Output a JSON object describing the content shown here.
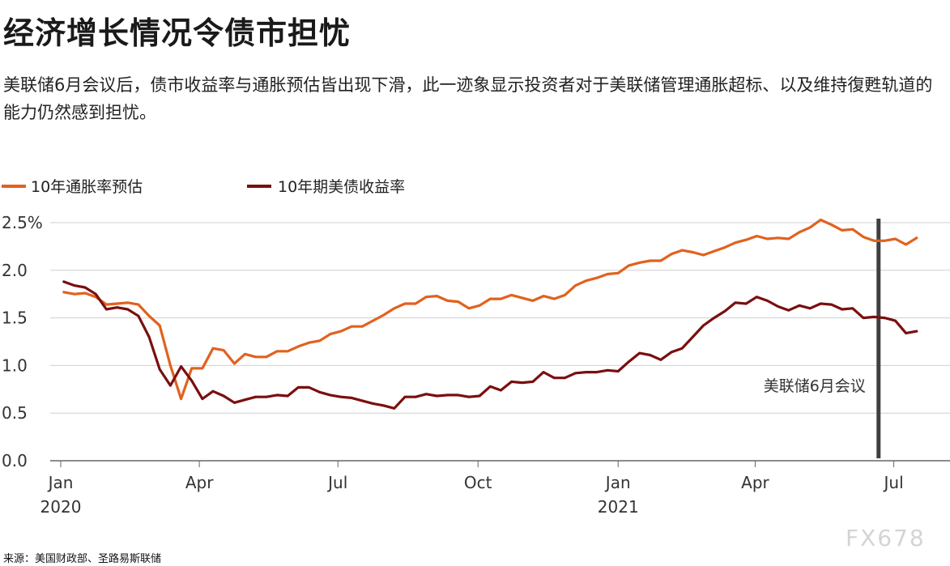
{
  "title": "经济增长情况令债市担忧",
  "subtitle": "美联储6月会议后，债市收益率与通胀预估皆出现下滑，此一迹象显示投资者对于美联储管理通胀超标、以及维持復甦轨道的能力仍然感到担忧。",
  "source": "来源：美国财政部、圣路易斯联储",
  "watermark": "FX678",
  "colors": {
    "inflation": "#e0621e",
    "yield": "#7a0f0f",
    "marker": "#404040",
    "grid": "#d0d0d0"
  },
  "chart_data": {
    "type": "line",
    "title": "",
    "xlabel": "",
    "ylabel": "",
    "ylim": [
      0,
      2.5
    ],
    "yticks": [
      0,
      0.5,
      1.0,
      1.5,
      2.0,
      2.5
    ],
    "ytick_labels": [
      "0.0",
      "0.5",
      "1.0",
      "1.5",
      "2.0",
      "2.5%"
    ],
    "xlim": [
      "2020-01-01",
      "2021-07-31"
    ],
    "xticks": [
      {
        "date": "2020-01-01",
        "label": "Jan",
        "year": "2020"
      },
      {
        "date": "2020-04-01",
        "label": "Apr",
        "year": ""
      },
      {
        "date": "2020-07-01",
        "label": "Jul",
        "year": ""
      },
      {
        "date": "2020-10-01",
        "label": "Oct",
        "year": ""
      },
      {
        "date": "2021-01-01",
        "label": "Jan",
        "year": "2021"
      },
      {
        "date": "2021-04-01",
        "label": "Apr",
        "year": ""
      },
      {
        "date": "2021-07-01",
        "label": "Jul",
        "year": ""
      }
    ],
    "grid": "horizontal",
    "legend_position": "top-left",
    "series": [
      {
        "name": "10年通胀率预估",
        "color": "#e0621e",
        "points": [
          [
            "2020-01-03",
            1.77
          ],
          [
            "2020-01-10",
            1.75
          ],
          [
            "2020-01-17",
            1.76
          ],
          [
            "2020-01-24",
            1.72
          ],
          [
            "2020-01-31",
            1.64
          ],
          [
            "2020-02-07",
            1.65
          ],
          [
            "2020-02-14",
            1.66
          ],
          [
            "2020-02-21",
            1.64
          ],
          [
            "2020-02-28",
            1.52
          ],
          [
            "2020-03-06",
            1.42
          ],
          [
            "2020-03-13",
            1.0
          ],
          [
            "2020-03-20",
            0.65
          ],
          [
            "2020-03-27",
            0.97
          ],
          [
            "2020-04-03",
            0.97
          ],
          [
            "2020-04-10",
            1.18
          ],
          [
            "2020-04-17",
            1.16
          ],
          [
            "2020-04-24",
            1.02
          ],
          [
            "2020-05-01",
            1.12
          ],
          [
            "2020-05-08",
            1.09
          ],
          [
            "2020-05-15",
            1.09
          ],
          [
            "2020-05-22",
            1.15
          ],
          [
            "2020-05-29",
            1.15
          ],
          [
            "2020-06-05",
            1.2
          ],
          [
            "2020-06-12",
            1.24
          ],
          [
            "2020-06-19",
            1.26
          ],
          [
            "2020-06-26",
            1.33
          ],
          [
            "2020-07-03",
            1.36
          ],
          [
            "2020-07-10",
            1.41
          ],
          [
            "2020-07-17",
            1.41
          ],
          [
            "2020-07-24",
            1.47
          ],
          [
            "2020-07-31",
            1.53
          ],
          [
            "2020-08-07",
            1.6
          ],
          [
            "2020-08-14",
            1.65
          ],
          [
            "2020-08-21",
            1.65
          ],
          [
            "2020-08-28",
            1.72
          ],
          [
            "2020-09-04",
            1.73
          ],
          [
            "2020-09-11",
            1.68
          ],
          [
            "2020-09-18",
            1.67
          ],
          [
            "2020-09-25",
            1.6
          ],
          [
            "2020-10-02",
            1.63
          ],
          [
            "2020-10-09",
            1.7
          ],
          [
            "2020-10-16",
            1.7
          ],
          [
            "2020-10-23",
            1.74
          ],
          [
            "2020-10-30",
            1.71
          ],
          [
            "2020-11-06",
            1.68
          ],
          [
            "2020-11-13",
            1.73
          ],
          [
            "2020-11-20",
            1.7
          ],
          [
            "2020-11-27",
            1.74
          ],
          [
            "2020-12-04",
            1.84
          ],
          [
            "2020-12-11",
            1.89
          ],
          [
            "2020-12-18",
            1.92
          ],
          [
            "2020-12-25",
            1.96
          ],
          [
            "2021-01-01",
            1.97
          ],
          [
            "2021-01-08",
            2.05
          ],
          [
            "2021-01-15",
            2.08
          ],
          [
            "2021-01-22",
            2.1
          ],
          [
            "2021-01-29",
            2.1
          ],
          [
            "2021-02-05",
            2.17
          ],
          [
            "2021-02-12",
            2.21
          ],
          [
            "2021-02-19",
            2.19
          ],
          [
            "2021-02-26",
            2.16
          ],
          [
            "2021-03-05",
            2.2
          ],
          [
            "2021-03-12",
            2.24
          ],
          [
            "2021-03-19",
            2.29
          ],
          [
            "2021-03-26",
            2.32
          ],
          [
            "2021-04-02",
            2.36
          ],
          [
            "2021-04-09",
            2.33
          ],
          [
            "2021-04-16",
            2.34
          ],
          [
            "2021-04-23",
            2.33
          ],
          [
            "2021-04-30",
            2.4
          ],
          [
            "2021-05-07",
            2.45
          ],
          [
            "2021-05-14",
            2.53
          ],
          [
            "2021-05-21",
            2.48
          ],
          [
            "2021-05-28",
            2.42
          ],
          [
            "2021-06-04",
            2.43
          ],
          [
            "2021-06-11",
            2.35
          ],
          [
            "2021-06-18",
            2.31
          ],
          [
            "2021-06-25",
            2.31
          ],
          [
            "2021-07-02",
            2.33
          ],
          [
            "2021-07-09",
            2.27
          ],
          [
            "2021-07-16",
            2.34
          ]
        ]
      },
      {
        "name": "10年期美债收益率",
        "color": "#7a0f0f",
        "points": [
          [
            "2020-01-03",
            1.88
          ],
          [
            "2020-01-10",
            1.84
          ],
          [
            "2020-01-17",
            1.82
          ],
          [
            "2020-01-24",
            1.75
          ],
          [
            "2020-01-31",
            1.59
          ],
          [
            "2020-02-07",
            1.61
          ],
          [
            "2020-02-14",
            1.59
          ],
          [
            "2020-02-21",
            1.52
          ],
          [
            "2020-02-28",
            1.3
          ],
          [
            "2020-03-06",
            0.96
          ],
          [
            "2020-03-13",
            0.79
          ],
          [
            "2020-03-20",
            0.99
          ],
          [
            "2020-03-27",
            0.84
          ],
          [
            "2020-04-03",
            0.65
          ],
          [
            "2020-04-10",
            0.73
          ],
          [
            "2020-04-17",
            0.68
          ],
          [
            "2020-04-24",
            0.61
          ],
          [
            "2020-05-01",
            0.64
          ],
          [
            "2020-05-08",
            0.67
          ],
          [
            "2020-05-15",
            0.67
          ],
          [
            "2020-05-22",
            0.69
          ],
          [
            "2020-05-29",
            0.68
          ],
          [
            "2020-06-05",
            0.77
          ],
          [
            "2020-06-12",
            0.77
          ],
          [
            "2020-06-19",
            0.72
          ],
          [
            "2020-06-26",
            0.69
          ],
          [
            "2020-07-03",
            0.67
          ],
          [
            "2020-07-10",
            0.66
          ],
          [
            "2020-07-17",
            0.63
          ],
          [
            "2020-07-24",
            0.6
          ],
          [
            "2020-07-31",
            0.58
          ],
          [
            "2020-08-07",
            0.55
          ],
          [
            "2020-08-14",
            0.67
          ],
          [
            "2020-08-21",
            0.67
          ],
          [
            "2020-08-28",
            0.7
          ],
          [
            "2020-09-04",
            0.68
          ],
          [
            "2020-09-11",
            0.69
          ],
          [
            "2020-09-18",
            0.69
          ],
          [
            "2020-09-25",
            0.67
          ],
          [
            "2020-10-02",
            0.68
          ],
          [
            "2020-10-09",
            0.78
          ],
          [
            "2020-10-16",
            0.74
          ],
          [
            "2020-10-23",
            0.83
          ],
          [
            "2020-10-30",
            0.82
          ],
          [
            "2020-11-06",
            0.83
          ],
          [
            "2020-11-13",
            0.93
          ],
          [
            "2020-11-20",
            0.87
          ],
          [
            "2020-11-27",
            0.87
          ],
          [
            "2020-12-04",
            0.92
          ],
          [
            "2020-12-11",
            0.93
          ],
          [
            "2020-12-18",
            0.93
          ],
          [
            "2020-12-25",
            0.95
          ],
          [
            "2021-01-01",
            0.94
          ],
          [
            "2021-01-08",
            1.04
          ],
          [
            "2021-01-15",
            1.13
          ],
          [
            "2021-01-22",
            1.11
          ],
          [
            "2021-01-29",
            1.06
          ],
          [
            "2021-02-05",
            1.14
          ],
          [
            "2021-02-12",
            1.18
          ],
          [
            "2021-02-19",
            1.3
          ],
          [
            "2021-02-26",
            1.42
          ],
          [
            "2021-03-05",
            1.5
          ],
          [
            "2021-03-12",
            1.57
          ],
          [
            "2021-03-19",
            1.66
          ],
          [
            "2021-03-26",
            1.65
          ],
          [
            "2021-04-02",
            1.72
          ],
          [
            "2021-04-09",
            1.68
          ],
          [
            "2021-04-16",
            1.62
          ],
          [
            "2021-04-23",
            1.58
          ],
          [
            "2021-04-30",
            1.63
          ],
          [
            "2021-05-07",
            1.6
          ],
          [
            "2021-05-14",
            1.65
          ],
          [
            "2021-05-21",
            1.64
          ],
          [
            "2021-05-28",
            1.59
          ],
          [
            "2021-06-04",
            1.6
          ],
          [
            "2021-06-11",
            1.5
          ],
          [
            "2021-06-18",
            1.51
          ],
          [
            "2021-06-25",
            1.5
          ],
          [
            "2021-07-02",
            1.47
          ],
          [
            "2021-07-09",
            1.34
          ],
          [
            "2021-07-16",
            1.36
          ]
        ]
      }
    ],
    "annotations": [
      {
        "type": "vertical-line",
        "x": "2021-06-21",
        "label": "美联储6月会议"
      }
    ]
  }
}
